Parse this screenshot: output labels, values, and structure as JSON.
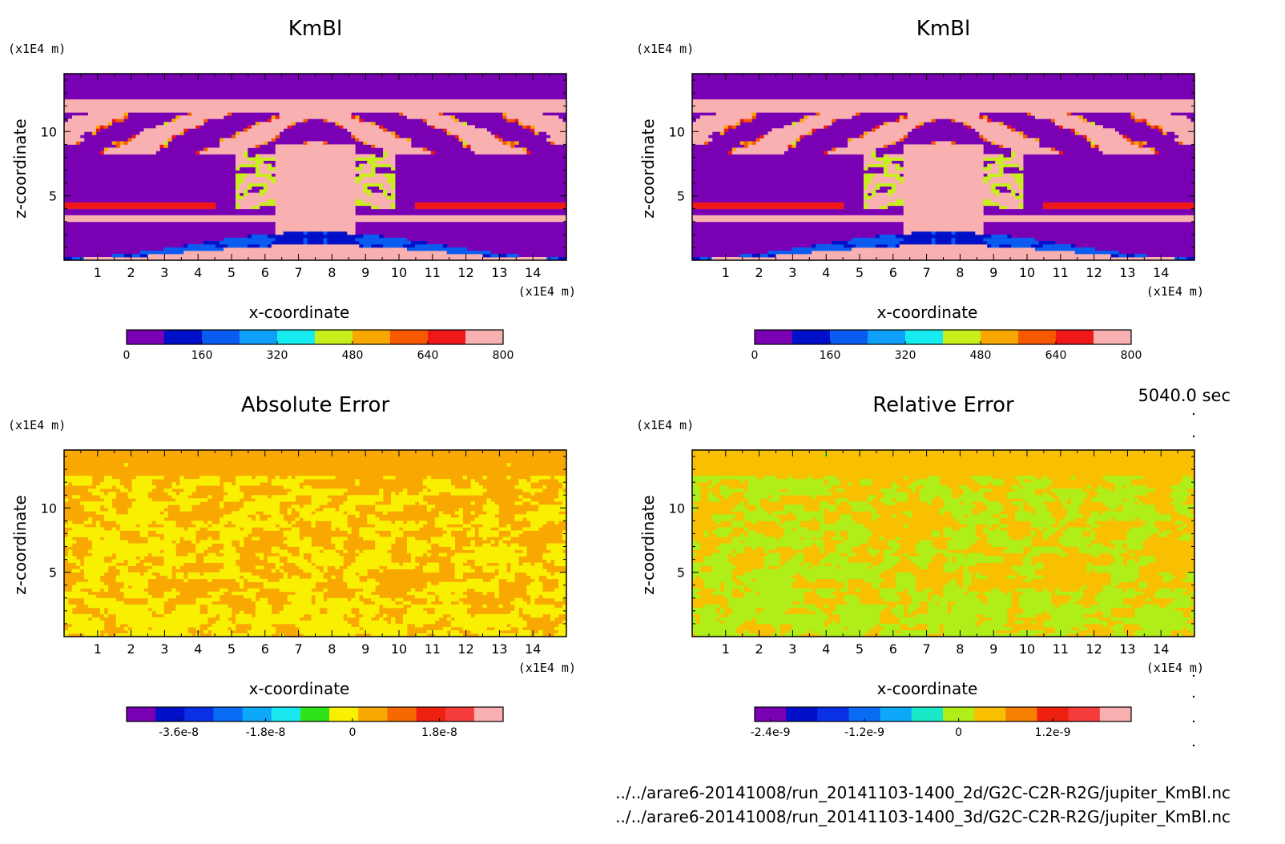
{
  "footer": {
    "time_label": "5040.0 sec",
    "file_2d": "../../arare6-20141008/run_20141103-1400_2d/G2C-C2R-R2G/jupiter_KmBl.nc",
    "file_3d": "../../arare6-20141008/run_20141103-1400_3d/G2C-C2R-R2G/jupiter_KmBl.nc"
  },
  "chart_data": [
    {
      "type": "heatmap",
      "title": "KmBl",
      "xlabel": "x-coordinate",
      "ylabel": "z-coordinate",
      "x_unit": "(x1E4 m)",
      "y_unit": "(x1E4 m)",
      "xlim": [
        0,
        15
      ],
      "ylim": [
        0,
        14.5
      ],
      "x_ticks": [
        1,
        2,
        3,
        4,
        5,
        6,
        7,
        8,
        9,
        10,
        11,
        12,
        13,
        14
      ],
      "y_ticks": [
        5,
        10
      ],
      "colorbar": {
        "ticks": [
          "0",
          "160",
          "320",
          "480",
          "640",
          "800"
        ],
        "colors": [
          "#7a00b4",
          "#0010c8",
          "#0a5cf0",
          "#0ea0f8",
          "#16ecf0",
          "#c8ee1c",
          "#f8a800",
          "#f65800",
          "#ee1818",
          "#f8b0b0"
        ]
      },
      "background": "#7a00b4",
      "field": "KmBl"
    },
    {
      "type": "heatmap",
      "title": "KmBl",
      "xlabel": "x-coordinate",
      "ylabel": "z-coordinate",
      "x_unit": "(x1E4 m)",
      "y_unit": "(x1E4 m)",
      "xlim": [
        0,
        15
      ],
      "ylim": [
        0,
        14.5
      ],
      "x_ticks": [
        1,
        2,
        3,
        4,
        5,
        6,
        7,
        8,
        9,
        10,
        11,
        12,
        13,
        14
      ],
      "y_ticks": [
        5,
        10
      ],
      "colorbar": {
        "ticks": [
          "0",
          "160",
          "320",
          "480",
          "640",
          "800"
        ],
        "colors": [
          "#7a00b4",
          "#0010c8",
          "#0a5cf0",
          "#0ea0f8",
          "#16ecf0",
          "#c8ee1c",
          "#f8a800",
          "#f65800",
          "#ee1818",
          "#f8b0b0"
        ]
      },
      "background": "#7a00b4",
      "field": "KmBl"
    },
    {
      "type": "heatmap",
      "title": "Absolute Error",
      "xlabel": "x-coordinate",
      "ylabel": "z-coordinate",
      "x_unit": "(x1E4 m)",
      "y_unit": "(x1E4 m)",
      "xlim": [
        0,
        15
      ],
      "ylim": [
        0,
        14.5
      ],
      "x_ticks": [
        1,
        2,
        3,
        4,
        5,
        6,
        7,
        8,
        9,
        10,
        11,
        12,
        13,
        14
      ],
      "y_ticks": [
        5,
        10
      ],
      "colorbar": {
        "ticks": [
          "-3.6e-8",
          "-1.8e-8",
          "0",
          "1.8e-8"
        ],
        "colors": [
          "#7a00b4",
          "#0010c8",
          "#0a30e6",
          "#0a6cf4",
          "#0ea8f8",
          "#1ae8f0",
          "#30e21a",
          "#f8f000",
          "#f8a800",
          "#f66800",
          "#ee2010",
          "#f63c3c",
          "#f8b0b0"
        ]
      },
      "background": "#f8a800",
      "field": "error"
    },
    {
      "type": "heatmap",
      "title": "Relative Error",
      "xlabel": "x-coordinate",
      "ylabel": "z-coordinate",
      "x_unit": "(x1E4 m)",
      "y_unit": "(x1E4 m)",
      "xlim": [
        0,
        15
      ],
      "ylim": [
        0,
        14.5
      ],
      "x_ticks": [
        1,
        2,
        3,
        4,
        5,
        6,
        7,
        8,
        9,
        10,
        11,
        12,
        13,
        14
      ],
      "y_ticks": [
        5,
        10
      ],
      "colorbar": {
        "ticks": [
          "-2.4e-9",
          "-1.2e-9",
          "0",
          "1.2e-9"
        ],
        "colors": [
          "#7a00b4",
          "#0010c8",
          "#0a30e6",
          "#0a6cf4",
          "#0ea8f8",
          "#1ae8c8",
          "#b0ee1a",
          "#f8c000",
          "#f68000",
          "#ee2010",
          "#f63c3c",
          "#f8b0b0"
        ]
      },
      "background": "#f8c000",
      "field": "error"
    }
  ]
}
